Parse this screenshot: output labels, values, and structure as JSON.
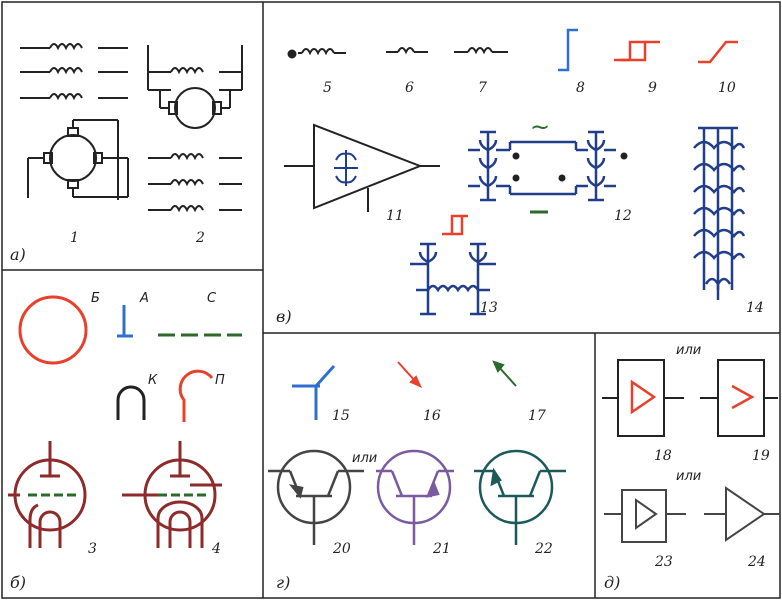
{
  "sections": {
    "a": "а)",
    "b": "б)",
    "v": "в)",
    "g": "г)",
    "d": "д)"
  },
  "numbers": {
    "n1": "1",
    "n2": "2",
    "n3": "3",
    "n4": "4",
    "n5": "5",
    "n6": "6",
    "n7": "7",
    "n8": "8",
    "n9": "9",
    "n10": "10",
    "n11": "11",
    "n12": "12",
    "n13": "13",
    "n14": "14",
    "n15": "15",
    "n16": "16",
    "n17": "17",
    "n18": "18",
    "n19": "19",
    "n20": "20",
    "n21": "21",
    "n22": "22",
    "n23": "23",
    "n24": "24"
  },
  "letters": {
    "B": "Б",
    "A": "А",
    "C": "С",
    "K": "К",
    "P": "П"
  },
  "ili": "или",
  "tilde": "~",
  "colors": {
    "black": "#222222",
    "red": "#e8402a",
    "blue": "#2f6fd0",
    "green": "#2a6a2a",
    "navy": "#213e8a",
    "maroon": "#8e2a2a",
    "purple": "#7a5aa0",
    "teal": "#1c5a5a"
  }
}
